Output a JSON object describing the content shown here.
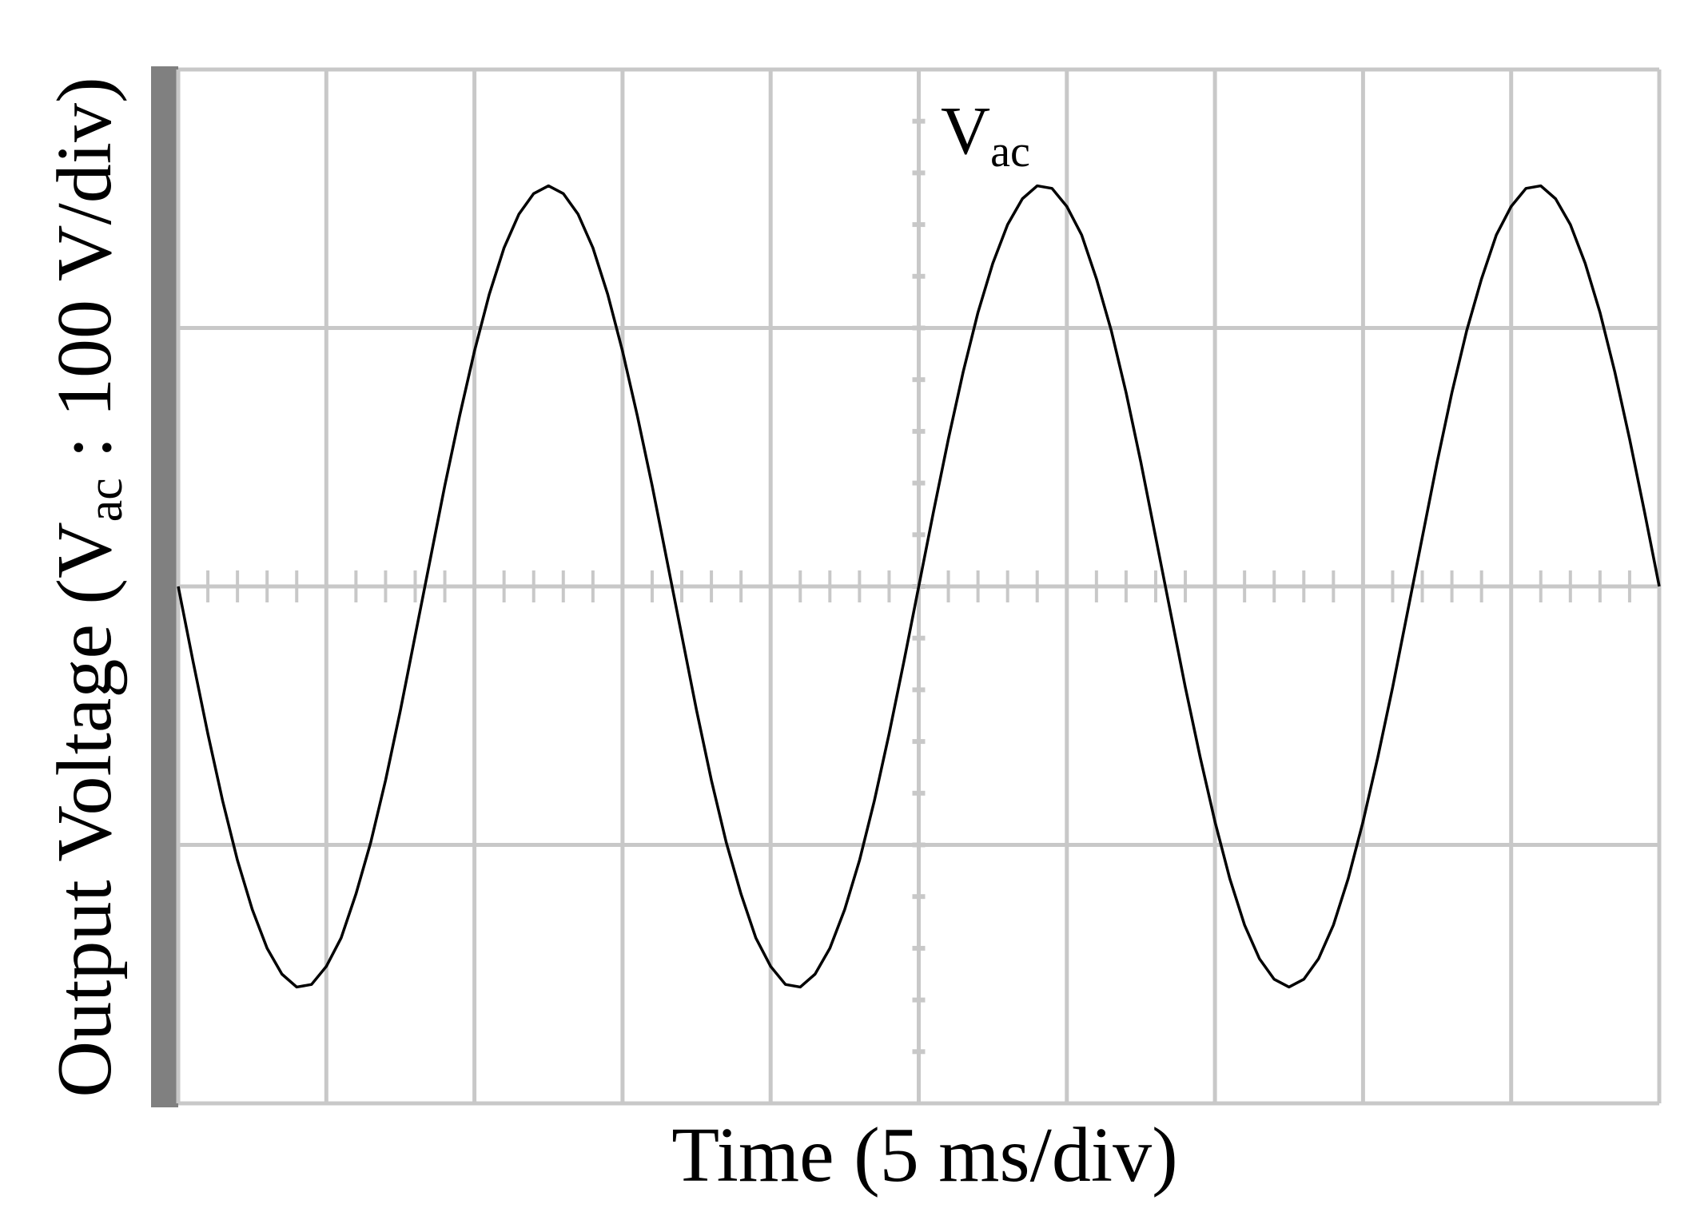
{
  "chart_data": {
    "type": "line",
    "x_label": "Time (5 ms/div)",
    "y_label": {
      "before": "Output Voltage (V",
      "sub": "ac",
      "after": " : 100 V/div)"
    },
    "annotation": {
      "text": "V",
      "sub": "ac"
    },
    "x": [
      0,
      0.5,
      1,
      1.5,
      2,
      2.5,
      3,
      3.5,
      4,
      4.5,
      5,
      5.5,
      6,
      6.5,
      7,
      7.5,
      8,
      8.5,
      9,
      9.5,
      10,
      10.5,
      11,
      11.5,
      12,
      12.5,
      13,
      13.5,
      14,
      14.5,
      15,
      15.5,
      16,
      16.5,
      17,
      17.5,
      18,
      18.5,
      19,
      19.5,
      20,
      20.5,
      21,
      21.5,
      22,
      22.5,
      23,
      23.5,
      24,
      24.5,
      25,
      25.5,
      26,
      26.5,
      27,
      27.5,
      28,
      28.5,
      29,
      29.5,
      30,
      30.5,
      31,
      31.5,
      32,
      32.5,
      33,
      33.5,
      34,
      34.5,
      35,
      35.5,
      36,
      36.5,
      37,
      37.5,
      38,
      38.5,
      39,
      39.5,
      40,
      40.5,
      41,
      41.5,
      42,
      42.5,
      43,
      43.5,
      44,
      44.5,
      45,
      45.5,
      46,
      46.5,
      47,
      47.5,
      48,
      48.5,
      49,
      49.5,
      50
    ],
    "series": [
      {
        "name": "Vac",
        "color": "#000000",
        "values": [
          0,
          -29,
          -57,
          -83,
          -106,
          -125,
          -140,
          -150,
          -155,
          -154,
          -147,
          -136,
          -119,
          -99,
          -75,
          -48,
          -19,
          10,
          39,
          66,
          91,
          113,
          131,
          144,
          152,
          155,
          152,
          144,
          131,
          113,
          91,
          66,
          39,
          10,
          -19,
          -48,
          -75,
          -99,
          -119,
          -136,
          -147,
          -154,
          -155,
          -150,
          -140,
          -125,
          -106,
          -83,
          -57,
          -29,
          0,
          29,
          57,
          83,
          106,
          125,
          140,
          150,
          155,
          154,
          147,
          136,
          119,
          99,
          75,
          48,
          19,
          -10,
          -39,
          -66,
          -91,
          -113,
          -131,
          -144,
          -152,
          -155,
          -152,
          -144,
          -131,
          -113,
          -91,
          -66,
          -39,
          -10,
          19,
          48,
          75,
          99,
          119,
          136,
          147,
          154,
          155,
          150,
          140,
          125,
          106,
          83,
          57,
          29,
          0
        ]
      }
    ],
    "xlim": [
      0,
      50
    ],
    "ylim": [
      -200,
      200
    ],
    "xticks": [
      0,
      5,
      10,
      15,
      20,
      25,
      30,
      35,
      40,
      45,
      50
    ],
    "yticks": [
      -200,
      -100,
      0,
      100,
      200
    ],
    "grid": true
  }
}
